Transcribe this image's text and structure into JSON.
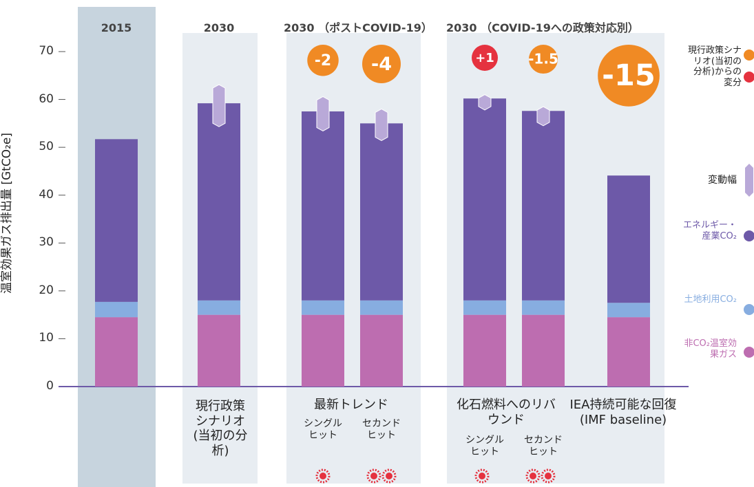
{
  "chart_data": {
    "type": "stacked_bar",
    "y_label": "温室効果ガス排出量 [GtCO₂e]",
    "ylim": [
      0,
      70
    ],
    "yticks": [
      0,
      10,
      20,
      30,
      40,
      50,
      60,
      70
    ],
    "group_headers": [
      "2015",
      "2030",
      "2030 （ポストCOVID-19）",
      "2030 （COVID-19への政策対応別）"
    ],
    "group_labels": [
      "現行政策シナリオ(当初の分析)",
      "最新トレンド",
      "化石燃料へのリバウンド",
      "IEA持続可能な回復(IMF baseline)"
    ],
    "categories": [
      null,
      null,
      "シングルヒット",
      "セカンドヒット",
      "シングルヒット",
      "セカンドヒット",
      null
    ],
    "series": [
      {
        "name": "非CO₂温室効果ガス",
        "color": "#bd6db0",
        "values": [
          14.5,
          15,
          15,
          15,
          15,
          15,
          14.5
        ]
      },
      {
        "name": "土地利用CO₂",
        "color": "#87ade0",
        "values": [
          3.2,
          3,
          3,
          3,
          3,
          3,
          3
        ]
      },
      {
        "name": "エネルギー・産業CO₂",
        "color": "#6d59a8",
        "values": [
          34,
          41.2,
          39.5,
          37,
          42.2,
          39.6,
          26.6
        ]
      }
    ],
    "range": {
      "name": "変動幅",
      "color": "#b9a9d8",
      "low": [
        null,
        54.3,
        53.4,
        51.4,
        57.8,
        54.5,
        null
      ],
      "high": [
        null,
        63.1,
        60.6,
        58,
        61,
        58.5,
        null
      ]
    },
    "delta_legend": "現行政策シナリオ(当初の分析)からの変分",
    "delta_colors": [
      "#f08a24",
      "#e5323f"
    ],
    "deltas": [
      null,
      null,
      {
        "value": -2,
        "label": "-2",
        "color": "#f08a24"
      },
      {
        "value": -4,
        "label": "-4",
        "color": "#f08a24"
      },
      {
        "value": 1,
        "label": "+1",
        "color": "#e5323f"
      },
      {
        "value": -1.5,
        "label": "-1.5",
        "color": "#f08a24"
      },
      {
        "value": -15,
        "label": "-15",
        "color": "#f08a24"
      }
    ]
  }
}
